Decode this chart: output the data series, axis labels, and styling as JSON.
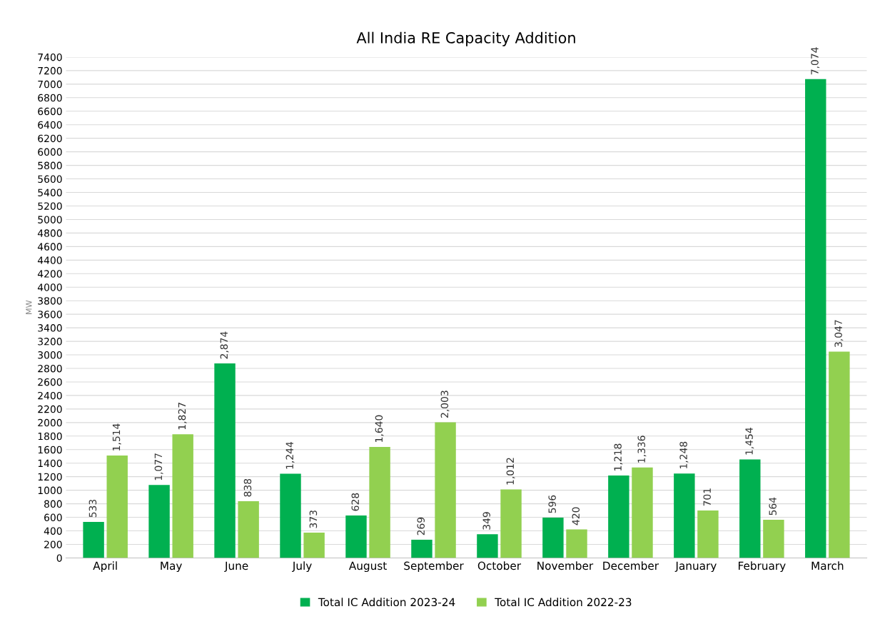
{
  "chart_data": {
    "type": "bar",
    "title": "All India RE Capacity Addition",
    "ylabel": "MW",
    "categories": [
      "April",
      "May",
      "June",
      "July",
      "August",
      "September",
      "October",
      "November",
      "December",
      "January",
      "February",
      "March"
    ],
    "series": [
      {
        "name": "Total IC Addition 2023-24",
        "color": "#00b050",
        "values": [
          533,
          1077,
          2874,
          1244,
          628,
          269,
          349,
          596,
          1218,
          1248,
          1454,
          7074
        ],
        "value_labels": [
          "533",
          "1,077",
          "2,874",
          "1,244",
          "628",
          "269",
          "349",
          "596",
          "1,218",
          "1,248",
          "1,454",
          "7,074"
        ]
      },
      {
        "name": "Total IC Addition 2022-23",
        "color": "#92d050",
        "values": [
          1514,
          1827,
          838,
          373,
          1640,
          2003,
          1012,
          420,
          1336,
          701,
          564,
          3047
        ],
        "value_labels": [
          "1,514",
          "1,827",
          "838",
          "373",
          "1,640",
          "2,003",
          "1,012",
          "420",
          "1,336",
          "701",
          "564",
          "3,047"
        ]
      }
    ],
    "ylim": [
      0,
      7400
    ],
    "yticks": [
      0,
      200,
      400,
      600,
      800,
      1000,
      1200,
      1400,
      1600,
      1800,
      2000,
      2200,
      2400,
      2600,
      2800,
      3000,
      3200,
      3400,
      3600,
      3800,
      4000,
      4200,
      4400,
      4600,
      4800,
      5000,
      5200,
      5400,
      5600,
      5800,
      6000,
      6200,
      6400,
      6600,
      6800,
      7000,
      7200,
      7400
    ],
    "grid": "y",
    "legend": "bottom"
  }
}
